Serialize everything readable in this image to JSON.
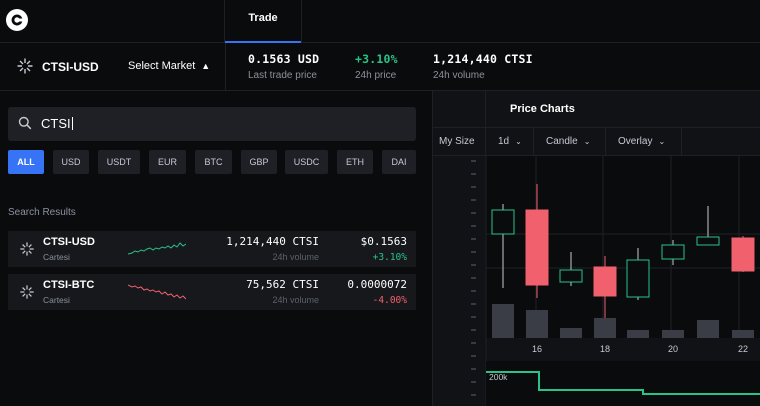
{
  "header": {
    "trade_tab": "Trade"
  },
  "market": {
    "pair": "CTSI-USD",
    "select_label": "Select Market",
    "stats": [
      {
        "value": "0.1563 USD",
        "label": "Last trade price",
        "color": "#ffffff"
      },
      {
        "value": "+3.10%",
        "label": "24h price",
        "color": "#2bc287"
      },
      {
        "value": "1,214,440 CTSI",
        "label": "24h volume",
        "color": "#ffffff"
      }
    ]
  },
  "search": {
    "value": "CTSI"
  },
  "filters": [
    "ALL",
    "USD",
    "USDT",
    "EUR",
    "BTC",
    "GBP",
    "USDC",
    "ETH",
    "DAI"
  ],
  "active_filter": "ALL",
  "results": {
    "label": "Search Results",
    "rows": [
      {
        "symbol": "CTSI-USD",
        "name": "Cartesi",
        "volume": "1,214,440 CTSI",
        "volume_label": "24h volume",
        "price": "$0.1563",
        "change": "+3.10%",
        "trend": "up"
      },
      {
        "symbol": "CTSI-BTC",
        "name": "Cartesi",
        "volume": "75,562 CTSI",
        "volume_label": "24h volume",
        "price": "0.0000072",
        "change": "-4.00%",
        "trend": "down"
      }
    ]
  },
  "price_charts": {
    "title": "Price Charts",
    "size_label": "My Size",
    "interval": "1d",
    "chart_type": "Candle",
    "overlay": "Overlay",
    "x_ticks": [
      "16",
      "18",
      "20",
      "22"
    ],
    "depth_label": "200k"
  },
  "chart_data": {
    "type": "candlestick",
    "candles": [
      {
        "dir": "up"
      },
      {
        "dir": "down"
      },
      {
        "dir": "up"
      },
      {
        "dir": "down"
      },
      {
        "dir": "up"
      },
      {
        "dir": "up"
      },
      {
        "dir": "up"
      },
      {
        "dir": "down"
      }
    ],
    "x_ticks": [
      "16",
      "18",
      "20",
      "22"
    ]
  },
  "colors": {
    "accent": "#3773f5",
    "up": "#2bc287",
    "down": "#f0616d"
  }
}
